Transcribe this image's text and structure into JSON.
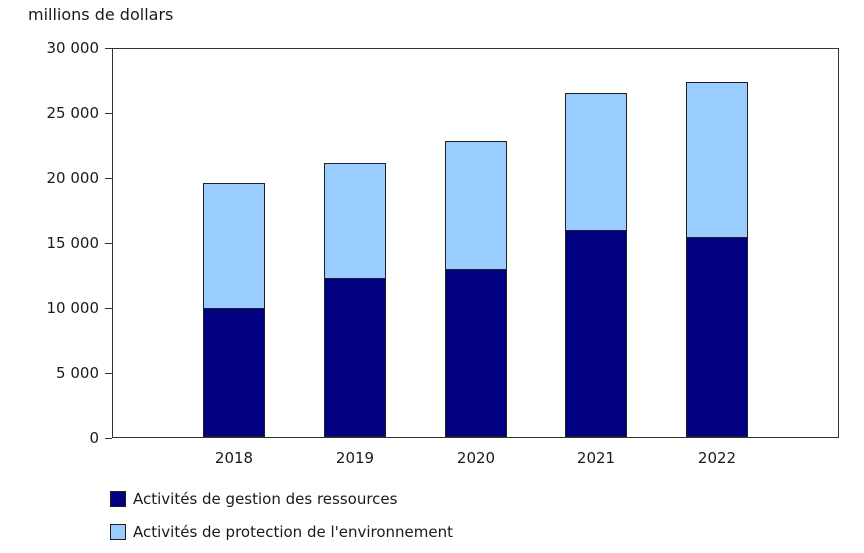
{
  "chart_data": {
    "type": "bar",
    "stacked": true,
    "ylabel": "millions de dollars",
    "categories": [
      "2018",
      "2019",
      "2020",
      "2021",
      "2022"
    ],
    "series": [
      {
        "name": "Activités de gestion des ressources",
        "color": "#000080",
        "values": [
          10000,
          12300,
          13000,
          16000,
          15500
        ]
      },
      {
        "name": "Activités de protection de l'environnement",
        "color": "#99ccff",
        "values": [
          9700,
          8900,
          9900,
          10600,
          12000
        ]
      }
    ],
    "ylim": [
      0,
      30000
    ],
    "yticks": [
      {
        "value": 0,
        "label": "0"
      },
      {
        "value": 5000,
        "label": "5 000"
      },
      {
        "value": 10000,
        "label": "10 000"
      },
      {
        "value": 15000,
        "label": "15 000"
      },
      {
        "value": 20000,
        "label": "20 000"
      },
      {
        "value": 25000,
        "label": "25 000"
      },
      {
        "value": 30000,
        "label": "30 000"
      }
    ],
    "grid": false,
    "legend_position": "bottom-left"
  }
}
